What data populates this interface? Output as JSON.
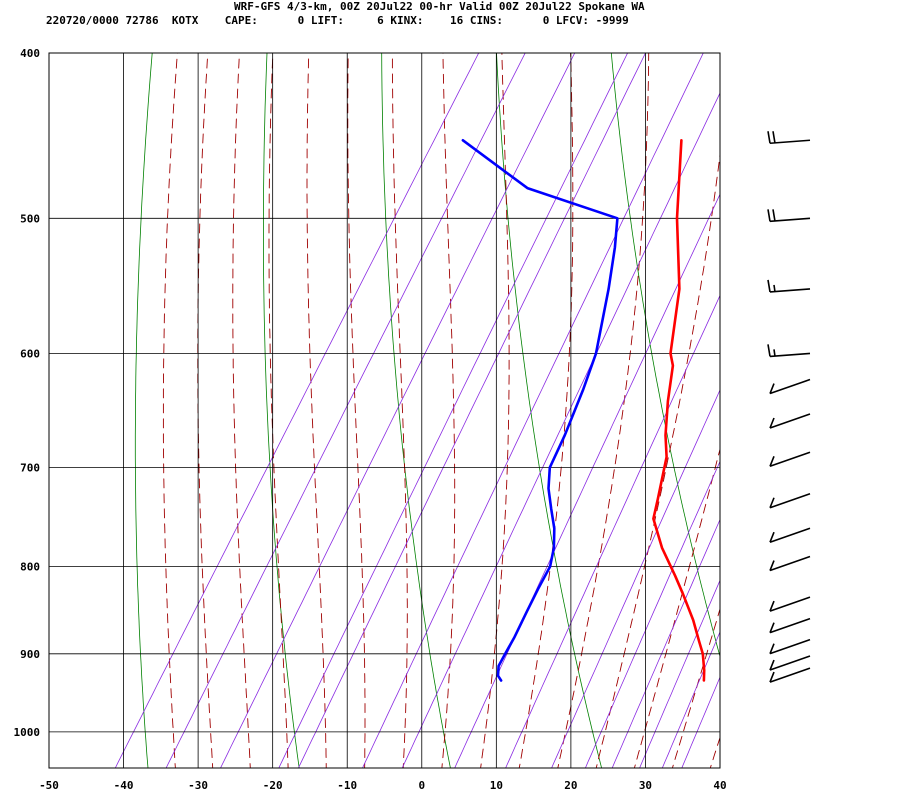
{
  "header": {
    "line1": "WRF-GFS 4/3-km, 00Z 20Jul22 00-hr Valid 00Z 20Jul22 Spokane WA",
    "line2": "220720/0000 72786  KOTX    CAPE:      0 LIFT:     6 KINX:    16 CINS:      0 LFCV: -9999"
  },
  "colors": {
    "temperature": "#ff0000",
    "dewpoint": "#0000ff",
    "isotherm": "#000000",
    "dry_adiabat": "#008000",
    "moist_adiabat": "#a00000",
    "mixing_ratio": "#8a2be2",
    "wind_barb": "#000000"
  },
  "chart_data": {
    "type": "skew-t",
    "title": "WRF-GFS 4/3-km, 00Z 20Jul22 00-hr Valid 00Z 20Jul22 Spokane WA",
    "xlabel": "",
    "ylabel": "",
    "x_ticks": [
      "-50",
      "-40",
      "-30",
      "-20",
      "-10",
      "0",
      "10",
      "20",
      "30",
      "40"
    ],
    "y_ticks": [
      "400",
      "500",
      "600",
      "700",
      "800",
      "900",
      "1000"
    ],
    "xlim": [
      -50,
      40
    ],
    "ylim": [
      1050,
      400
    ],
    "y_scale": "log-pressure",
    "grid": true,
    "series": [
      {
        "key": "temperature",
        "points": [
          [
            -15.7,
            450
          ],
          [
            -10,
            500
          ],
          [
            -4,
            550
          ],
          [
            0,
            600
          ],
          [
            1.3,
            610
          ],
          [
            3.5,
            640
          ],
          [
            5.9,
            670
          ],
          [
            7.8,
            690
          ],
          [
            10,
            730
          ],
          [
            11,
            750
          ],
          [
            14.5,
            780
          ],
          [
            18.5,
            810
          ],
          [
            21,
            830
          ],
          [
            24.5,
            860
          ],
          [
            27,
            885
          ],
          [
            28.5,
            900
          ],
          [
            30,
            920
          ],
          [
            30.8,
            933
          ]
        ]
      },
      {
        "key": "dewpoint",
        "points": [
          [
            -45,
            450
          ],
          [
            -32.5,
            480
          ],
          [
            -18,
            500
          ],
          [
            -16,
            520
          ],
          [
            -13.5,
            550
          ],
          [
            -10,
            600
          ],
          [
            -8.8,
            630
          ],
          [
            -7.6,
            670
          ],
          [
            -7,
            700
          ],
          [
            -5.5,
            720
          ],
          [
            -3.5,
            740
          ],
          [
            -1.5,
            760
          ],
          [
            0,
            780
          ],
          [
            1,
            800
          ],
          [
            1.2,
            825
          ],
          [
            1.5,
            850
          ],
          [
            1.9,
            880
          ],
          [
            2,
            900
          ],
          [
            2.1,
            915
          ],
          [
            2.8,
            927
          ],
          [
            3.6,
            933
          ]
        ]
      }
    ],
    "wind_barbs": [
      {
        "pressure": 450,
        "speed_kt": 20
      },
      {
        "pressure": 500,
        "speed_kt": 20
      },
      {
        "pressure": 550,
        "speed_kt": 15
      },
      {
        "pressure": 600,
        "speed_kt": 15
      },
      {
        "pressure": 630,
        "speed_kt": 10
      },
      {
        "pressure": 660,
        "speed_kt": 10
      },
      {
        "pressure": 695,
        "speed_kt": 10
      },
      {
        "pressure": 735,
        "speed_kt": 10
      },
      {
        "pressure": 770,
        "speed_kt": 10
      },
      {
        "pressure": 800,
        "speed_kt": 10
      },
      {
        "pressure": 845,
        "speed_kt": 10
      },
      {
        "pressure": 870,
        "speed_kt": 10
      },
      {
        "pressure": 895,
        "speed_kt": 10
      },
      {
        "pressure": 915,
        "speed_kt": 10
      },
      {
        "pressure": 930,
        "speed_kt": 10
      }
    ]
  }
}
